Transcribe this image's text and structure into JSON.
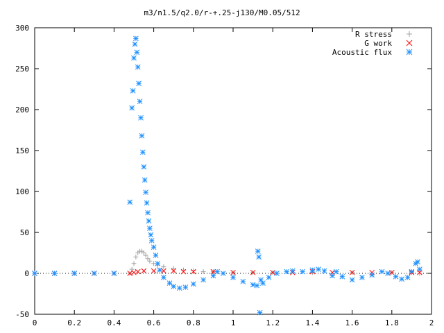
{
  "chart_data": {
    "type": "scatter",
    "title": "m3/n1.5/q2.0/r-+.25-j130/M0.05/512",
    "xlabel": "",
    "ylabel": "",
    "xlim": [
      0,
      2
    ],
    "ylim": [
      -50,
      300
    ],
    "x_ticks": [
      0,
      0.2,
      0.4,
      0.6,
      0.8,
      1,
      1.2,
      1.4,
      1.6,
      1.8,
      2
    ],
    "x_tick_labels": [
      "0",
      "0.2",
      "0.4",
      "0.6",
      "0.8",
      "1",
      "1.2",
      "1.4",
      "1.6",
      "1.8",
      "2"
    ],
    "y_ticks": [
      -50,
      0,
      50,
      100,
      150,
      200,
      250,
      300
    ],
    "y_tick_labels": [
      "-50",
      "0",
      "50",
      "100",
      "150",
      "200",
      "250",
      "300"
    ],
    "grid": false,
    "legend_position": "top-right",
    "series": [
      {
        "name": "R stress",
        "marker": "plus",
        "color": "#a0a0a0",
        "points": [
          [
            0.0,
            0
          ],
          [
            0.1,
            0
          ],
          [
            0.2,
            0
          ],
          [
            0.3,
            0
          ],
          [
            0.4,
            0
          ],
          [
            0.48,
            0
          ],
          [
            0.49,
            5
          ],
          [
            0.5,
            12
          ],
          [
            0.51,
            20
          ],
          [
            0.52,
            25
          ],
          [
            0.53,
            27
          ],
          [
            0.54,
            27
          ],
          [
            0.55,
            25
          ],
          [
            0.56,
            22
          ],
          [
            0.57,
            18
          ],
          [
            0.58,
            15
          ],
          [
            0.6,
            12
          ],
          [
            0.62,
            10
          ],
          [
            0.65,
            8
          ],
          [
            0.7,
            6
          ],
          [
            0.75,
            4
          ],
          [
            0.8,
            3
          ],
          [
            0.85,
            2
          ],
          [
            0.9,
            2
          ],
          [
            1.0,
            1
          ],
          [
            1.1,
            1
          ],
          [
            1.2,
            1
          ],
          [
            1.4,
            1
          ],
          [
            1.6,
            1
          ],
          [
            1.8,
            1
          ],
          [
            1.9,
            1
          ],
          [
            1.94,
            0
          ]
        ]
      },
      {
        "name": "G work",
        "marker": "cross",
        "color": "#ff0000",
        "points": [
          [
            0.0,
            0
          ],
          [
            0.1,
            0
          ],
          [
            0.2,
            0
          ],
          [
            0.3,
            0
          ],
          [
            0.4,
            0
          ],
          [
            0.48,
            0
          ],
          [
            0.5,
            1
          ],
          [
            0.52,
            2
          ],
          [
            0.55,
            3
          ],
          [
            0.6,
            3
          ],
          [
            0.65,
            3
          ],
          [
            0.7,
            3
          ],
          [
            0.75,
            2
          ],
          [
            0.8,
            2
          ],
          [
            0.9,
            2
          ],
          [
            1.0,
            1
          ],
          [
            1.1,
            1
          ],
          [
            1.2,
            1
          ],
          [
            1.3,
            1
          ],
          [
            1.4,
            2
          ],
          [
            1.5,
            1
          ],
          [
            1.6,
            1
          ],
          [
            1.7,
            1
          ],
          [
            1.8,
            1
          ],
          [
            1.9,
            1
          ],
          [
            1.94,
            1
          ]
        ]
      },
      {
        "name": "Acoustic flux",
        "marker": "star",
        "color": "#1e90ff",
        "points": [
          [
            0.0,
            0
          ],
          [
            0.1,
            0
          ],
          [
            0.2,
            0
          ],
          [
            0.3,
            0
          ],
          [
            0.4,
            0
          ],
          [
            0.48,
            87
          ],
          [
            0.49,
            202
          ],
          [
            0.495,
            223
          ],
          [
            0.5,
            263
          ],
          [
            0.505,
            280
          ],
          [
            0.51,
            287
          ],
          [
            0.515,
            270
          ],
          [
            0.52,
            252
          ],
          [
            0.525,
            232
          ],
          [
            0.53,
            210
          ],
          [
            0.535,
            190
          ],
          [
            0.54,
            168
          ],
          [
            0.545,
            148
          ],
          [
            0.55,
            130
          ],
          [
            0.555,
            114
          ],
          [
            0.56,
            99
          ],
          [
            0.565,
            86
          ],
          [
            0.57,
            74
          ],
          [
            0.575,
            64
          ],
          [
            0.58,
            55
          ],
          [
            0.585,
            47
          ],
          [
            0.59,
            40
          ],
          [
            0.6,
            32
          ],
          [
            0.61,
            22
          ],
          [
            0.62,
            12
          ],
          [
            0.63,
            4
          ],
          [
            0.65,
            -5
          ],
          [
            0.68,
            -12
          ],
          [
            0.7,
            -16
          ],
          [
            0.73,
            -18
          ],
          [
            0.76,
            -17
          ],
          [
            0.8,
            -13
          ],
          [
            0.85,
            -8
          ],
          [
            0.9,
            -3
          ],
          [
            0.92,
            2
          ],
          [
            0.95,
            0
          ],
          [
            1.0,
            -5
          ],
          [
            1.05,
            -10
          ],
          [
            1.1,
            -14
          ],
          [
            1.12,
            -15
          ],
          [
            1.125,
            27
          ],
          [
            1.13,
            20
          ],
          [
            1.135,
            -48
          ],
          [
            1.14,
            -8
          ],
          [
            1.15,
            -12
          ],
          [
            1.18,
            -5
          ],
          [
            1.22,
            0
          ],
          [
            1.27,
            2
          ],
          [
            1.3,
            3
          ],
          [
            1.35,
            2
          ],
          [
            1.4,
            4
          ],
          [
            1.43,
            5
          ],
          [
            1.46,
            3
          ],
          [
            1.5,
            -3
          ],
          [
            1.52,
            2
          ],
          [
            1.55,
            -4
          ],
          [
            1.6,
            -8
          ],
          [
            1.65,
            -5
          ],
          [
            1.7,
            -2
          ],
          [
            1.75,
            2
          ],
          [
            1.78,
            0
          ],
          [
            1.82,
            -4
          ],
          [
            1.85,
            -7
          ],
          [
            1.88,
            -5
          ],
          [
            1.9,
            2
          ],
          [
            1.92,
            12
          ],
          [
            1.93,
            14
          ],
          [
            1.94,
            5
          ]
        ]
      }
    ]
  }
}
